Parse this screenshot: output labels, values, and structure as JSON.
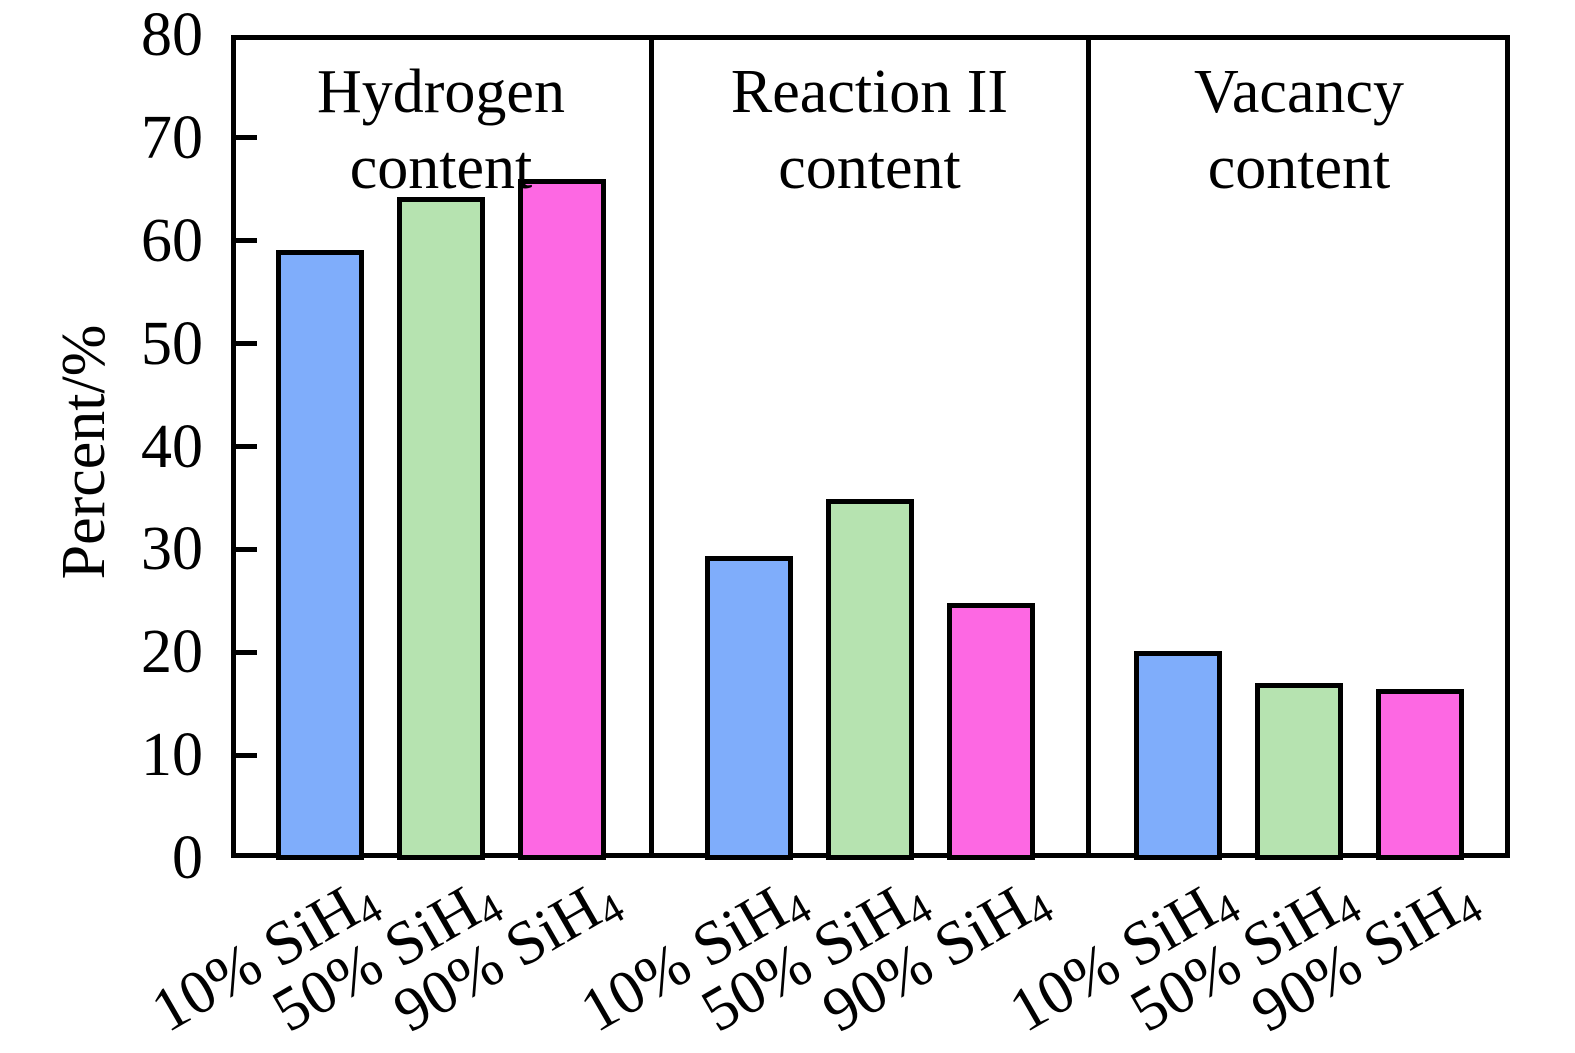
{
  "chart_data": {
    "type": "bar",
    "title": "",
    "ylabel": "Percent/%",
    "xlabel": "",
    "ylim": [
      0,
      80
    ],
    "yticks": [
      0,
      10,
      20,
      30,
      40,
      50,
      60,
      70,
      80
    ],
    "grid": false,
    "legend": null,
    "categories": [
      {
        "base": "10% SiH",
        "subscript": "4"
      },
      {
        "base": "50% SiH",
        "subscript": "4"
      },
      {
        "base": "90% SiH",
        "subscript": "4"
      }
    ],
    "panels": [
      {
        "title_line1": "Hydrogen",
        "title_line2": "content",
        "values": [
          59.1,
          64.3,
          66.0
        ]
      },
      {
        "title_line1": "Reaction II",
        "title_line2": "content",
        "values": [
          29.4,
          34.9,
          24.8
        ]
      },
      {
        "title_line1": "Vacancy",
        "title_line2": "content",
        "values": [
          20.1,
          17.0,
          16.4
        ]
      }
    ],
    "bar_colors": [
      "#7fadfb",
      "#b6e3b0",
      "#fd68e3"
    ],
    "bar_edge_color": "#000000",
    "axis_color": "#000000"
  }
}
